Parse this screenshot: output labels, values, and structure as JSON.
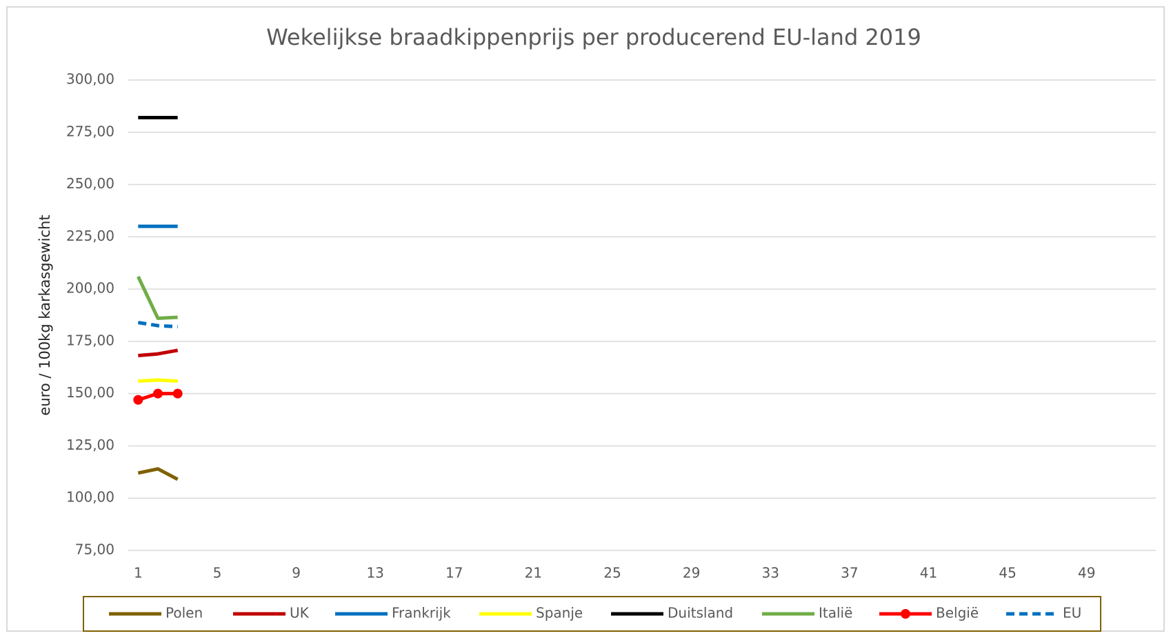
{
  "chart_data": {
    "type": "line",
    "title": "Wekelijkse braadkippenprijs per producerend EU-land 2019",
    "ylabel": "euro / 100kg karkasgewicht",
    "categories": [
      1,
      null,
      null,
      null,
      5,
      null,
      null,
      null,
      9,
      null,
      null,
      null,
      13,
      null,
      null,
      null,
      17,
      null,
      null,
      null,
      21,
      null,
      null,
      null,
      25,
      null,
      null,
      null,
      29,
      null,
      null,
      null,
      33,
      null,
      null,
      null,
      37,
      null,
      null,
      null,
      41,
      null,
      null,
      null,
      45,
      null,
      null,
      null,
      49,
      null,
      null,
      null
    ],
    "ylim": [
      75,
      300
    ],
    "yticks": [
      {
        "value": 75,
        "label": "75,00"
      },
      {
        "value": 100,
        "label": "100,00"
      },
      {
        "value": 125,
        "label": "125,00"
      },
      {
        "value": 150,
        "label": "150,00"
      },
      {
        "value": 175,
        "label": "175,00"
      },
      {
        "value": 200,
        "label": "200,00"
      },
      {
        "value": 225,
        "label": "225,00"
      },
      {
        "value": 250,
        "label": "250,00"
      },
      {
        "value": 275,
        "label": "275,00"
      },
      {
        "value": 300,
        "label": "300,00"
      }
    ],
    "grid": true,
    "legend": "bottom",
    "series": [
      {
        "name": "Polen",
        "color": "#7f6000",
        "values": [
          112,
          114,
          109,
          null,
          null,
          null,
          null,
          null,
          null,
          null,
          null,
          null,
          null,
          null,
          null,
          null,
          null,
          null,
          null,
          null,
          null,
          null,
          null,
          null,
          null,
          null,
          null,
          null,
          null,
          null,
          null,
          null,
          null,
          null,
          null,
          null,
          null,
          null,
          null,
          null,
          null,
          null,
          null,
          null,
          null,
          null,
          null,
          null,
          null,
          null,
          null,
          null
        ]
      },
      {
        "name": "UK",
        "color": "#c00000",
        "values": [
          168.2,
          169,
          170.7,
          null,
          null,
          null,
          null,
          null,
          null,
          null,
          null,
          null,
          null,
          null,
          null,
          null,
          null,
          null,
          null,
          null,
          null,
          null,
          null,
          null,
          null,
          null,
          null,
          null,
          null,
          null,
          null,
          null,
          null,
          null,
          null,
          null,
          null,
          null,
          null,
          null,
          null,
          null,
          null,
          null,
          null,
          null,
          null,
          null,
          null,
          null,
          null,
          null
        ]
      },
      {
        "name": "Frankrijk",
        "color": "#0070c0",
        "values": [
          230,
          230,
          230,
          null,
          null,
          null,
          null,
          null,
          null,
          null,
          null,
          null,
          null,
          null,
          null,
          null,
          null,
          null,
          null,
          null,
          null,
          null,
          null,
          null,
          null,
          null,
          null,
          null,
          null,
          null,
          null,
          null,
          null,
          null,
          null,
          null,
          null,
          null,
          null,
          null,
          null,
          null,
          null,
          null,
          null,
          null,
          null,
          null,
          null,
          null,
          null,
          null
        ]
      },
      {
        "name": "Spanje",
        "color": "#ffff00",
        "values": [
          156,
          156.5,
          156,
          null,
          null,
          null,
          null,
          null,
          null,
          null,
          null,
          null,
          null,
          null,
          null,
          null,
          null,
          null,
          null,
          null,
          null,
          null,
          null,
          null,
          null,
          null,
          null,
          null,
          null,
          null,
          null,
          null,
          null,
          null,
          null,
          null,
          null,
          null,
          null,
          null,
          null,
          null,
          null,
          null,
          null,
          null,
          null,
          null,
          null,
          null,
          null,
          null
        ]
      },
      {
        "name": "Duitsland",
        "color": "#000000",
        "values": [
          282,
          282,
          282,
          null,
          null,
          null,
          null,
          null,
          null,
          null,
          null,
          null,
          null,
          null,
          null,
          null,
          null,
          null,
          null,
          null,
          null,
          null,
          null,
          null,
          null,
          null,
          null,
          null,
          null,
          null,
          null,
          null,
          null,
          null,
          null,
          null,
          null,
          null,
          null,
          null,
          null,
          null,
          null,
          null,
          null,
          null,
          null,
          null,
          null,
          null,
          null,
          null
        ]
      },
      {
        "name": "Italië",
        "color": "#70ad47",
        "values": [
          206,
          186,
          186.5,
          null,
          null,
          null,
          null,
          null,
          null,
          null,
          null,
          null,
          null,
          null,
          null,
          null,
          null,
          null,
          null,
          null,
          null,
          null,
          null,
          null,
          null,
          null,
          null,
          null,
          null,
          null,
          null,
          null,
          null,
          null,
          null,
          null,
          null,
          null,
          null,
          null,
          null,
          null,
          null,
          null,
          null,
          null,
          null,
          null,
          null,
          null,
          null,
          null
        ]
      },
      {
        "name": "België",
        "color": "#ff0000",
        "marker": true,
        "values": [
          147,
          150,
          150,
          null,
          null,
          null,
          null,
          null,
          null,
          null,
          null,
          null,
          null,
          null,
          null,
          null,
          null,
          null,
          null,
          null,
          null,
          null,
          null,
          null,
          null,
          null,
          null,
          null,
          null,
          null,
          null,
          null,
          null,
          null,
          null,
          null,
          null,
          null,
          null,
          null,
          null,
          null,
          null,
          null,
          null,
          null,
          null,
          null,
          null,
          null,
          null,
          null
        ]
      },
      {
        "name": "EU",
        "color": "#0070c0",
        "dashed": true,
        "values": [
          184,
          182.5,
          182,
          null,
          null,
          null,
          null,
          null,
          null,
          null,
          null,
          null,
          null,
          null,
          null,
          null,
          null,
          null,
          null,
          null,
          null,
          null,
          null,
          null,
          null,
          null,
          null,
          null,
          null,
          null,
          null,
          null,
          null,
          null,
          null,
          null,
          null,
          null,
          null,
          null,
          null,
          null,
          null,
          null,
          null,
          null,
          null,
          null,
          null,
          null,
          null,
          null
        ]
      }
    ]
  }
}
